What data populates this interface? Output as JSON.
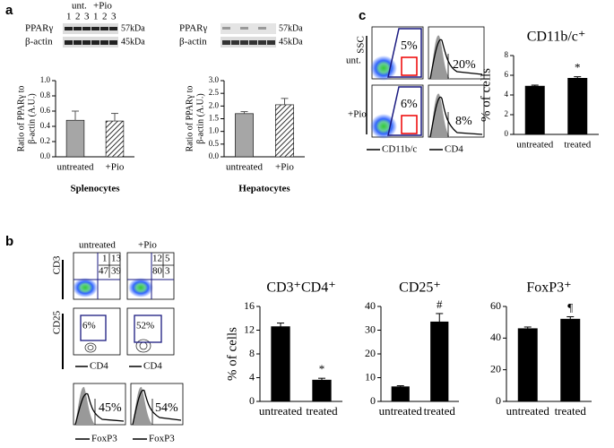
{
  "figure": {
    "panel_labels": [
      "a",
      "b",
      "c"
    ],
    "blots": [
      {
        "group_labels": [
          "unt.",
          "+Pio"
        ],
        "lanes": [
          1,
          2,
          3,
          1,
          2,
          3
        ],
        "rows": [
          "PPARγ",
          "β-actin"
        ],
        "sizes": [
          "57kDa",
          "45kDa"
        ]
      },
      {
        "rows": [
          "PPARγ",
          "β-actin"
        ],
        "sizes": [
          "57kDa",
          "45kDa"
        ]
      }
    ],
    "flow_c": {
      "y_axis": "SSC",
      "rows": [
        "unt.",
        "+Pio"
      ],
      "gate_percents": [
        "5%",
        "6%"
      ],
      "hist_percents": [
        "20%",
        "8%"
      ],
      "x_axes": [
        "CD11b/c",
        "CD4"
      ]
    },
    "flow_b": {
      "columns": [
        "untreated",
        "+Pio"
      ],
      "cd3_axis": "CD3",
      "quadrants": [
        [
          1,
          13,
          47,
          39
        ],
        [
          12,
          5,
          80,
          3
        ]
      ],
      "cd25_axis": "CD25",
      "cd25_percents": [
        "6%",
        "52%"
      ],
      "cd4_axes": [
        "CD4",
        "CD4"
      ],
      "foxp3_percents": [
        "45%",
        "54%"
      ],
      "foxp3_axes": [
        "FoxP3",
        "FoxP3"
      ]
    }
  },
  "chart_data": [
    {
      "type": "bar",
      "categories": [
        "untreated",
        "+Pio"
      ],
      "values": [
        0.48,
        0.47
      ],
      "errors": [
        0.12,
        0.1
      ],
      "ylim": [
        0,
        1
      ],
      "yticks": [
        {
          "value": 0,
          "label": "0.0"
        },
        {
          "value": 0.2,
          "label": "0.2"
        },
        {
          "value": 0.4,
          "label": "0.4"
        },
        {
          "value": 0.6,
          "label": "0.6"
        },
        {
          "value": 0.8,
          "label": "0.8"
        },
        {
          "value": 1,
          "label": "1.0"
        }
      ],
      "ylabel": [
        "Ratio of PPARγ to",
        "β-actin (A.U.)"
      ],
      "xlabel": "Splenocytes",
      "colors": [
        "#a6a6a6",
        "#ffffff"
      ],
      "hatch": [
        false,
        true
      ]
    },
    {
      "type": "bar",
      "categories": [
        "untreated",
        "+Pio"
      ],
      "values": [
        1.7,
        2.05
      ],
      "errors": [
        0.08,
        0.25
      ],
      "ylim": [
        0,
        3
      ],
      "yticks": [
        {
          "value": 0,
          "label": "0.0"
        },
        {
          "value": 0.5,
          "label": "0.5"
        },
        {
          "value": 1,
          "label": "1.0"
        },
        {
          "value": 1.5,
          "label": "1.5"
        },
        {
          "value": 2,
          "label": "2.0"
        },
        {
          "value": 2.5,
          "label": "2.5"
        },
        {
          "value": 3,
          "label": "3.0"
        }
      ],
      "ylabel": [
        "Ratio of PPARγ to",
        "β-actin (A.U.)"
      ],
      "xlabel": "Hepatocytes",
      "colors": [
        "#a6a6a6",
        "#ffffff"
      ],
      "hatch": [
        false,
        true
      ]
    },
    {
      "type": "bar",
      "title": "CD11b/c⁺",
      "categories": [
        "untreated",
        "treated"
      ],
      "values": [
        4.9,
        5.7
      ],
      "errors": [
        0.1,
        0.15
      ],
      "ylim": [
        0,
        8
      ],
      "yticks": [
        0,
        2,
        4,
        6,
        8
      ],
      "ylabel": "% of cells",
      "annotation": "*",
      "colors": [
        "#000000",
        "#000000"
      ]
    },
    {
      "type": "bar",
      "title": "CD3⁺CD4⁺",
      "categories": [
        "untreated",
        "treated"
      ],
      "values": [
        12.6,
        3.6
      ],
      "errors": [
        0.6,
        0.3
      ],
      "ylim": [
        0,
        16
      ],
      "yticks": [
        0,
        4,
        8,
        12,
        16
      ],
      "ylabel": "% of cells",
      "annotation": "*",
      "colors": [
        "#000000",
        "#000000"
      ]
    },
    {
      "type": "bar",
      "title": "CD25⁺",
      "categories": [
        "untreated",
        "treated"
      ],
      "values": [
        6.2,
        33.5
      ],
      "errors": [
        0.4,
        3.5
      ],
      "ylim": [
        0,
        40
      ],
      "yticks": [
        0,
        10,
        20,
        30,
        40
      ],
      "annotation": "#",
      "colors": [
        "#000000",
        "#000000"
      ]
    },
    {
      "type": "bar",
      "title": "FoxP3⁺",
      "categories": [
        "untreated",
        "treated"
      ],
      "values": [
        46,
        52
      ],
      "errors": [
        1,
        1.5
      ],
      "ylim": [
        0,
        60
      ],
      "yticks": [
        0,
        20,
        40,
        60
      ],
      "annotation": "¶",
      "colors": [
        "#000000",
        "#000000"
      ]
    }
  ]
}
